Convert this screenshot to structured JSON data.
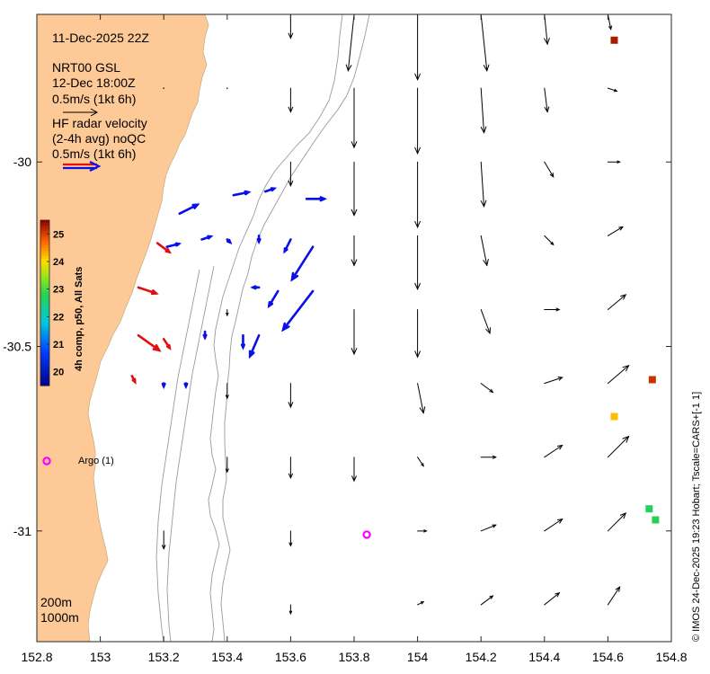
{
  "info": {
    "date_label": "11-Dec-2025 22Z",
    "product_label": "NRT00 GSL",
    "product_time": "12-Dec 18:00Z",
    "model_scale": "0.5m/s (1kt 6h)",
    "radar_label_1": "HF radar velocity",
    "radar_label_2": "(2-4h avg) noQC",
    "radar_scale": "0.5m/s (1kt 6h)"
  },
  "colorbar": {
    "title": "4h comp, p50, All Sats",
    "ticks": [
      "25",
      "24",
      "23",
      "22",
      "21",
      "20"
    ]
  },
  "depth_labels": {
    "shallow": "200m",
    "deep": "1000m"
  },
  "argo": {
    "label": "Argo (1)"
  },
  "credit": "© IMOS 24-Dec-2025 19:23 Hobart; Tscale=CARS+[-1 1]",
  "axes": {
    "x_ticks": [
      "152.8",
      "153",
      "153.2",
      "153.4",
      "153.6",
      "153.8",
      "154",
      "154.2",
      "154.4",
      "154.6",
      "154.8"
    ],
    "y_ticks": [
      "-30",
      "-30.5",
      "-31"
    ]
  },
  "colors": {
    "land": "#fdc996",
    "model_arrow": "#000000",
    "radar_arrow": "#0a10e6",
    "radar_arrow_alt": "#e01010",
    "argo": "#ff00ff",
    "isobath": "#9a9a9a"
  },
  "chart_data": {
    "type": "vector-map",
    "xlim": [
      152.8,
      154.8
    ],
    "ylim": [
      -31.3,
      -29.6
    ],
    "x_ticks": [
      152.8,
      153.0,
      153.2,
      153.4,
      153.6,
      153.8,
      154.0,
      154.2,
      154.4,
      154.6,
      154.8
    ],
    "y_ticks": [
      -30.0,
      -30.5,
      -31.0
    ],
    "sst_colorbar_range": [
      19.5,
      25.5
    ],
    "model_vectors": [
      {
        "lon": 153.6,
        "lat": -29.6,
        "u": 0.0,
        "v": -0.08
      },
      {
        "lon": 153.8,
        "lat": -29.6,
        "u": -0.02,
        "v": -0.19
      },
      {
        "lon": 154.0,
        "lat": -29.6,
        "u": 0.0,
        "v": -0.22
      },
      {
        "lon": 154.2,
        "lat": -29.6,
        "u": 0.02,
        "v": -0.19
      },
      {
        "lon": 154.4,
        "lat": -29.6,
        "u": 0.01,
        "v": -0.1
      },
      {
        "lon": 154.6,
        "lat": -29.6,
        "u": 0.01,
        "v": -0.05
      },
      {
        "lon": 153.2,
        "lat": -29.8,
        "u": 0.0,
        "v": 0.0
      },
      {
        "lon": 153.4,
        "lat": -29.8,
        "u": 0.0,
        "v": 0.0
      },
      {
        "lon": 153.6,
        "lat": -29.8,
        "u": 0.0,
        "v": -0.08
      },
      {
        "lon": 153.8,
        "lat": -29.8,
        "u": 0.0,
        "v": -0.2
      },
      {
        "lon": 154.0,
        "lat": -29.8,
        "u": 0.0,
        "v": -0.22
      },
      {
        "lon": 154.2,
        "lat": -29.8,
        "u": 0.01,
        "v": -0.15
      },
      {
        "lon": 154.4,
        "lat": -29.8,
        "u": 0.01,
        "v": -0.08
      },
      {
        "lon": 154.6,
        "lat": -29.8,
        "u": 0.03,
        "v": -0.01
      },
      {
        "lon": 153.6,
        "lat": -30.0,
        "u": 0.0,
        "v": -0.08
      },
      {
        "lon": 153.8,
        "lat": -30.0,
        "u": 0.0,
        "v": -0.18
      },
      {
        "lon": 154.0,
        "lat": -30.0,
        "u": 0.0,
        "v": -0.22
      },
      {
        "lon": 154.2,
        "lat": -30.0,
        "u": 0.01,
        "v": -0.15
      },
      {
        "lon": 154.4,
        "lat": -30.0,
        "u": 0.03,
        "v": -0.05
      },
      {
        "lon": 154.6,
        "lat": -30.0,
        "u": 0.04,
        "v": 0.0
      },
      {
        "lon": 153.8,
        "lat": -30.2,
        "u": 0.0,
        "v": -0.1
      },
      {
        "lon": 154.0,
        "lat": -30.2,
        "u": 0.0,
        "v": -0.18
      },
      {
        "lon": 154.2,
        "lat": -30.2,
        "u": 0.02,
        "v": -0.1
      },
      {
        "lon": 154.4,
        "lat": -30.2,
        "u": 0.03,
        "v": -0.03
      },
      {
        "lon": 154.6,
        "lat": -30.2,
        "u": 0.05,
        "v": 0.03
      },
      {
        "lon": 153.4,
        "lat": -30.4,
        "u": 0.0,
        "v": -0.02
      },
      {
        "lon": 153.8,
        "lat": -30.4,
        "u": 0.0,
        "v": -0.15
      },
      {
        "lon": 154.0,
        "lat": -30.4,
        "u": 0.0,
        "v": -0.16
      },
      {
        "lon": 154.2,
        "lat": -30.4,
        "u": 0.03,
        "v": -0.08
      },
      {
        "lon": 154.4,
        "lat": -30.4,
        "u": 0.05,
        "v": 0.0
      },
      {
        "lon": 154.6,
        "lat": -30.4,
        "u": 0.06,
        "v": 0.05
      },
      {
        "lon": 153.4,
        "lat": -30.6,
        "u": 0.0,
        "v": -0.05
      },
      {
        "lon": 153.6,
        "lat": -30.6,
        "u": 0.0,
        "v": -0.08
      },
      {
        "lon": 154.0,
        "lat": -30.6,
        "u": 0.02,
        "v": -0.1
      },
      {
        "lon": 154.2,
        "lat": -30.6,
        "u": 0.04,
        "v": -0.03
      },
      {
        "lon": 154.4,
        "lat": -30.6,
        "u": 0.06,
        "v": 0.02
      },
      {
        "lon": 154.6,
        "lat": -30.6,
        "u": 0.07,
        "v": 0.06
      },
      {
        "lon": 153.4,
        "lat": -30.8,
        "u": 0.0,
        "v": -0.05
      },
      {
        "lon": 153.6,
        "lat": -30.8,
        "u": 0.0,
        "v": -0.07
      },
      {
        "lon": 153.8,
        "lat": -30.8,
        "u": 0.0,
        "v": -0.08
      },
      {
        "lon": 154.0,
        "lat": -30.8,
        "u": 0.02,
        "v": -0.03
      },
      {
        "lon": 154.2,
        "lat": -30.8,
        "u": 0.05,
        "v": 0.0
      },
      {
        "lon": 154.4,
        "lat": -30.8,
        "u": 0.06,
        "v": 0.04
      },
      {
        "lon": 154.6,
        "lat": -30.8,
        "u": 0.07,
        "v": 0.07
      },
      {
        "lon": 153.2,
        "lat": -31.0,
        "u": 0.0,
        "v": -0.06
      },
      {
        "lon": 153.6,
        "lat": -31.0,
        "u": 0.0,
        "v": -0.05
      },
      {
        "lon": 154.0,
        "lat": -31.0,
        "u": 0.03,
        "v": 0.0
      },
      {
        "lon": 154.2,
        "lat": -31.0,
        "u": 0.05,
        "v": 0.02
      },
      {
        "lon": 154.4,
        "lat": -31.0,
        "u": 0.06,
        "v": 0.04
      },
      {
        "lon": 154.6,
        "lat": -31.0,
        "u": 0.06,
        "v": 0.06
      },
      {
        "lon": 153.6,
        "lat": -31.2,
        "u": 0.0,
        "v": -0.03
      },
      {
        "lon": 154.0,
        "lat": -31.2,
        "u": 0.02,
        "v": 0.01
      },
      {
        "lon": 154.2,
        "lat": -31.2,
        "u": 0.04,
        "v": 0.03
      },
      {
        "lon": 154.4,
        "lat": -31.2,
        "u": 0.05,
        "v": 0.04
      },
      {
        "lon": 154.6,
        "lat": -31.2,
        "u": 0.04,
        "v": 0.06
      }
    ],
    "radar_vectors": [
      {
        "lon": 153.25,
        "lat": -30.14,
        "u": 0.06,
        "v": 0.03
      },
      {
        "lon": 153.42,
        "lat": -30.09,
        "u": 0.05,
        "v": 0.01
      },
      {
        "lon": 153.52,
        "lat": -30.08,
        "u": 0.03,
        "v": 0.01
      },
      {
        "lon": 153.65,
        "lat": -30.1,
        "u": 0.06,
        "v": 0.0
      },
      {
        "lon": 153.21,
        "lat": -30.23,
        "u": 0.04,
        "v": 0.01
      },
      {
        "lon": 153.32,
        "lat": -30.21,
        "u": 0.03,
        "v": 0.01
      },
      {
        "lon": 153.4,
        "lat": -30.21,
        "u": 0.01,
        "v": -0.01
      },
      {
        "lon": 153.5,
        "lat": -30.2,
        "u": 0.0,
        "v": -0.02
      },
      {
        "lon": 153.6,
        "lat": -30.21,
        "u": -0.02,
        "v": -0.04
      },
      {
        "lon": 153.67,
        "lat": -30.23,
        "u": -0.07,
        "v": -0.11
      },
      {
        "lon": 153.5,
        "lat": -30.34,
        "u": -0.02,
        "v": 0.0
      },
      {
        "lon": 153.56,
        "lat": -30.35,
        "u": -0.03,
        "v": -0.05
      },
      {
        "lon": 153.67,
        "lat": -30.35,
        "u": -0.1,
        "v": -0.13
      },
      {
        "lon": 153.33,
        "lat": -30.46,
        "u": 0.0,
        "v": -0.02
      },
      {
        "lon": 153.45,
        "lat": -30.47,
        "u": 0.0,
        "v": -0.04
      },
      {
        "lon": 153.5,
        "lat": -30.47,
        "u": -0.03,
        "v": -0.07
      },
      {
        "lon": 153.2,
        "lat": -30.6,
        "u": 0.0,
        "v": -0.01
      },
      {
        "lon": 153.27,
        "lat": -30.6,
        "u": 0.0,
        "v": -0.01
      }
    ],
    "radar_vectors_red": [
      {
        "lon": 153.18,
        "lat": -30.22,
        "u": 0.04,
        "v": -0.03
      },
      {
        "lon": 153.12,
        "lat": -30.34,
        "u": 0.06,
        "v": -0.02
      },
      {
        "lon": 153.12,
        "lat": -30.47,
        "u": 0.07,
        "v": -0.05
      },
      {
        "lon": 153.2,
        "lat": -30.48,
        "u": 0.02,
        "v": -0.03
      },
      {
        "lon": 153.1,
        "lat": -30.58,
        "u": 0.01,
        "v": -0.02
      }
    ],
    "sst_cells": [
      {
        "lon": 154.62,
        "lat": -29.67,
        "value": 25.3
      },
      {
        "lon": 154.74,
        "lat": -30.59,
        "value": 25.1
      },
      {
        "lon": 154.62,
        "lat": -30.69,
        "value": 24.2
      },
      {
        "lon": 154.73,
        "lat": -30.94,
        "value": 22.7
      },
      {
        "lon": 154.75,
        "lat": -30.97,
        "value": 22.8
      }
    ],
    "argo_floats": [
      {
        "lon": 153.84,
        "lat": -31.01
      }
    ]
  }
}
